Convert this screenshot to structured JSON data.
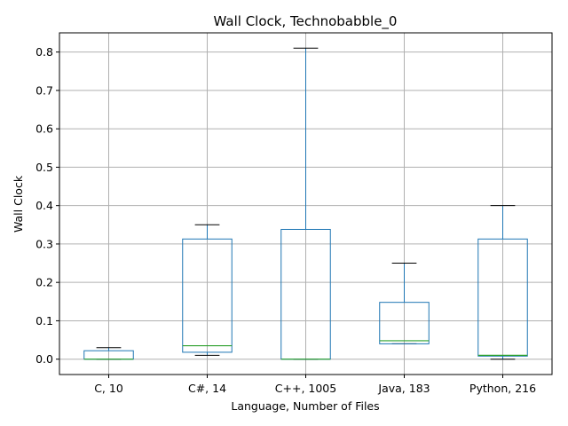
{
  "chart_data": {
    "type": "box",
    "title": "Wall Clock, Technobabble_0",
    "xlabel": "Language, Number of Files",
    "ylabel": "Wall Clock",
    "ylim": [
      -0.04,
      0.85
    ],
    "yticks": [
      0.0,
      0.1,
      0.2,
      0.3,
      0.4,
      0.5,
      0.6,
      0.7,
      0.8
    ],
    "ytick_labels": [
      "0.0",
      "0.1",
      "0.2",
      "0.3",
      "0.4",
      "0.5",
      "0.6",
      "0.7",
      "0.8"
    ],
    "grid": true,
    "categories": [
      "C, 10",
      "C#, 14",
      "C++, 1005",
      "Java, 183",
      "Python, 216"
    ],
    "boxes": [
      {
        "whislo": 0.0,
        "q1": 0.0,
        "med": 0.0,
        "q3": 0.022,
        "whishi": 0.03
      },
      {
        "whislo": 0.01,
        "q1": 0.018,
        "med": 0.035,
        "q3": 0.313,
        "whishi": 0.35
      },
      {
        "whislo": 0.0,
        "q1": 0.0,
        "med": 0.0,
        "q3": 0.338,
        "whishi": 0.81
      },
      {
        "whislo": 0.04,
        "q1": 0.04,
        "med": 0.048,
        "q3": 0.148,
        "whishi": 0.25
      },
      {
        "whislo": 0.0,
        "q1": 0.008,
        "med": 0.01,
        "q3": 0.313,
        "whishi": 0.4
      }
    ],
    "colors": {
      "box": "#1f77b4",
      "median": "#2ca02c",
      "cap": "#000000",
      "grid": "#b0b0b0"
    }
  }
}
